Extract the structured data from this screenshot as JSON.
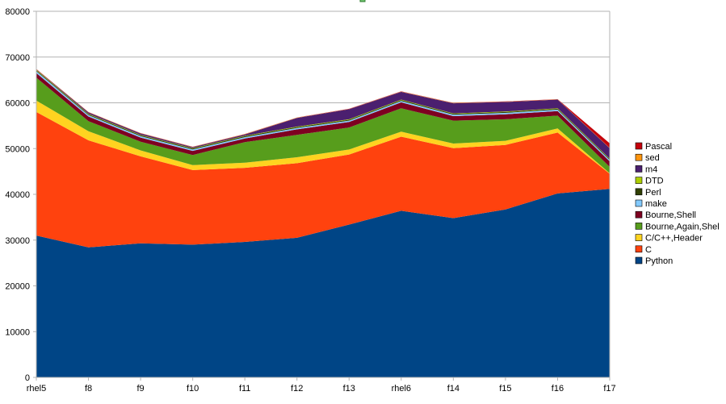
{
  "chart_data": {
    "type": "area",
    "stacked": true,
    "categories": [
      "rhel5",
      "f8",
      "f9",
      "f10",
      "f11",
      "f12",
      "f13",
      "rhel6",
      "f14",
      "f15",
      "f16",
      "f17"
    ],
    "ylim": [
      0,
      80000
    ],
    "yticks": [
      0,
      10000,
      20000,
      30000,
      40000,
      50000,
      60000,
      70000,
      80000
    ],
    "grid": true,
    "legend_position": "right",
    "series": [
      {
        "name": "Python",
        "color": "#004586",
        "values": [
          31000,
          28400,
          29300,
          29000,
          29600,
          30500,
          33400,
          36400,
          34800,
          36700,
          40200,
          41200
        ]
      },
      {
        "name": "C",
        "color": "#ff420e",
        "values": [
          27000,
          23400,
          19000,
          16300,
          16200,
          16300,
          15300,
          16200,
          15300,
          14100,
          13300,
          3300
        ]
      },
      {
        "name": "C/C++,Header",
        "color": "#ffd320",
        "values": [
          2500,
          2000,
          1300,
          1100,
          1100,
          1300,
          1100,
          1100,
          1000,
          900,
          900,
          100
        ]
      },
      {
        "name": "Bourne,Again,Shel",
        "color": "#579d1c",
        "values": [
          5000,
          2200,
          1900,
          2200,
          4500,
          4900,
          4800,
          5100,
          5000,
          4700,
          2800,
          1400
        ]
      },
      {
        "name": "Bourne,Shell",
        "color": "#7e0021",
        "values": [
          1000,
          1000,
          900,
          900,
          800,
          1200,
          1200,
          1300,
          1000,
          1100,
          1000,
          1200
        ]
      },
      {
        "name": "make",
        "color": "#83caff",
        "values": [
          400,
          300,
          300,
          300,
          300,
          300,
          300,
          300,
          300,
          300,
          300,
          300
        ]
      },
      {
        "name": "Perl",
        "color": "#314004",
        "values": [
          200,
          200,
          200,
          200,
          200,
          200,
          200,
          200,
          200,
          200,
          200,
          200
        ]
      },
      {
        "name": "DTD",
        "color": "#aecf00",
        "values": [
          100,
          100,
          100,
          100,
          100,
          100,
          100,
          100,
          100,
          100,
          100,
          100
        ]
      },
      {
        "name": "m4",
        "color": "#4b1f6f",
        "values": [
          100,
          300,
          300,
          200,
          300,
          1900,
          2200,
          1700,
          2200,
          2100,
          1900,
          2300
        ]
      },
      {
        "name": "sed",
        "color": "#ff950e",
        "values": [
          50,
          50,
          50,
          50,
          50,
          50,
          50,
          50,
          50,
          50,
          50,
          50
        ]
      },
      {
        "name": "Pascal",
        "color": "#c5000b",
        "values": [
          50,
          50,
          50,
          50,
          50,
          50,
          50,
          50,
          50,
          50,
          50,
          1000
        ]
      }
    ]
  }
}
